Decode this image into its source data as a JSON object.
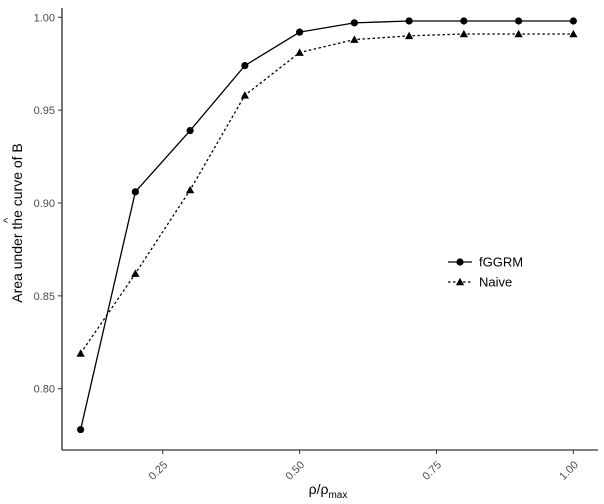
{
  "chart_data": {
    "type": "line",
    "title": "",
    "xlabel": {
      "base": "ρ",
      "separator": "/",
      "denom": "ρ",
      "subscript": "max"
    },
    "ylabel": {
      "text": "Area under the curve of B",
      "hat": "^"
    },
    "x": [
      0.1,
      0.2,
      0.3,
      0.4,
      0.5,
      0.6,
      0.7,
      0.8,
      0.9,
      1.0
    ],
    "xlim": [
      0.066,
      1.045
    ],
    "ylim": [
      0.767,
      1.005
    ],
    "x_ticks": [
      0.25,
      0.5,
      0.75,
      1.0
    ],
    "x_tick_labels": [
      "0.25",
      "0.50",
      "0.75",
      "1.00"
    ],
    "y_ticks": [
      0.8,
      0.85,
      0.9,
      0.95,
      1.0
    ],
    "y_tick_labels": [
      "0.80",
      "0.85",
      "0.90",
      "0.95",
      "1.00"
    ],
    "grid": false,
    "legend_position": "right",
    "series": [
      {
        "name": "fGGRM",
        "marker": "circle",
        "line": "solid",
        "color": "#000000",
        "values": [
          0.778,
          0.906,
          0.939,
          0.974,
          0.992,
          0.997,
          0.998,
          0.998,
          0.998,
          0.998
        ]
      },
      {
        "name": "Naive",
        "marker": "triangle",
        "line": "dotted",
        "color": "#000000",
        "values": [
          0.819,
          0.862,
          0.907,
          0.958,
          0.981,
          0.988,
          0.99,
          0.991,
          0.991,
          0.991
        ]
      }
    ]
  }
}
